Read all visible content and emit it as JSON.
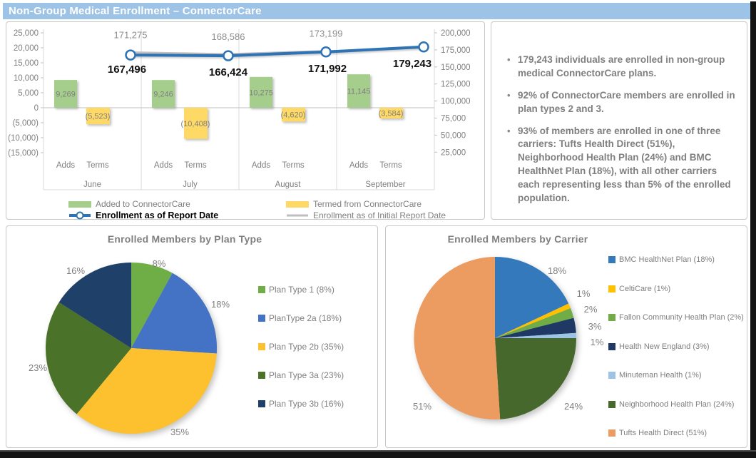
{
  "title": "Non-Group Medical Enrollment – ConnectorCare",
  "colors": {
    "titlebar_bg": "#9DC3E6",
    "added_bar": "#A5CE8D",
    "termed_bar": "#FFD965",
    "report_line": "#2E74B5",
    "initial_line": "#BFBFBF",
    "edge_strip": "#141414",
    "panel_border": "#C7C7C7",
    "axis_text": "#7F7F7F"
  },
  "summary": {
    "bullets": [
      "179,243 individuals are enrolled in non-group medical ConnectorCare plans.",
      "92% of ConnectorCare members are enrolled in plan types 2 and 3.",
      "93% of members are enrolled in one of three carriers: Tufts Health Direct (51%), Neighborhood Health Plan (24%) and BMC HealthNet Plan (18%), with all other carriers each representing less than 5% of the enrolled population."
    ]
  },
  "chart_data": [
    {
      "type": "bar",
      "subtype": "combo bar+line, dual axis",
      "categories": [
        "June",
        "July",
        "August",
        "September"
      ],
      "sub_categories": [
        "Adds",
        "Terms"
      ],
      "series": [
        {
          "name": "Added to ConnectorCare",
          "type": "bar",
          "axis": "left",
          "values": [
            9269,
            9246,
            10275,
            11145
          ],
          "labels": [
            "9,269",
            "9,246",
            "10,275",
            "11,145"
          ],
          "color": "#A5CE8D"
        },
        {
          "name": "Termed from ConnectorCare",
          "type": "bar",
          "axis": "left",
          "values": [
            -5523,
            -10408,
            -4620,
            -3584
          ],
          "labels": [
            "(5,523)",
            "(10,408)",
            "(4,620)",
            "(3,584)"
          ],
          "color": "#FFD965"
        },
        {
          "name": "Enrollment as of Report Date",
          "type": "line",
          "axis": "right",
          "values": [
            167496,
            166424,
            171992,
            179243
          ],
          "labels": [
            "167,496",
            "166,424",
            "171,992",
            "179,243"
          ],
          "color": "#2E74B5"
        },
        {
          "name": "Enrollment as of Initial Report Date",
          "type": "line",
          "axis": "right",
          "values": [
            171275,
            168586,
            173199,
            null
          ],
          "labels": [
            "171,275",
            "168,586",
            "173,199",
            ""
          ],
          "color": "#BFBFBF"
        }
      ],
      "left_axis": {
        "max": 25000,
        "min": -15000,
        "step": 5000,
        "labels": [
          "25,000",
          "20,000",
          "15,000",
          "10,000",
          "5,000",
          "0",
          "(5,000)",
          "(10,000)",
          "(15,000)"
        ]
      },
      "right_axis": {
        "max": 200000,
        "min_labeled": 25000,
        "step": 25000,
        "labels": [
          "200,000",
          "175,000",
          "150,000",
          "125,000",
          "100,000",
          "75,000",
          "50,000",
          "25,000"
        ]
      },
      "grid": "vertical category separators + zero line",
      "legend_position": "bottom"
    },
    {
      "type": "pie",
      "title": "Enrolled Members by Plan Type",
      "legend_position": "right",
      "slices": [
        {
          "label": "Plan Type 1 (8%)",
          "pct": 8,
          "pct_label": "8%",
          "color": "#6FAE46"
        },
        {
          "label": "PlanType 2a (18%)",
          "pct": 18,
          "pct_label": "18%",
          "color": "#4472C4"
        },
        {
          "label": "Plan Type 2b (35%)",
          "pct": 35,
          "pct_label": "35%",
          "color": "#FDC02F"
        },
        {
          "label": "Plan Type 3a (23%)",
          "pct": 23,
          "pct_label": "23%",
          "color": "#4A7229"
        },
        {
          "label": "Plan Type 3b (16%)",
          "pct": 16,
          "pct_label": "16%",
          "color": "#1F4068"
        }
      ]
    },
    {
      "type": "pie",
      "title": "Enrolled Members by Carrier",
      "legend_position": "right",
      "slices": [
        {
          "label": "BMC HealthNet Plan (18%)",
          "pct": 18,
          "pct_label": "18%",
          "color": "#3579BD"
        },
        {
          "label": "CeltiCare (1%)",
          "pct": 1,
          "pct_label": "1%",
          "color": "#FFC000"
        },
        {
          "label": "Fallon Community Health Plan (2%)",
          "pct": 2,
          "pct_label": "2%",
          "color": "#70AD47"
        },
        {
          "label": "Health New England (3%)",
          "pct": 3,
          "pct_label": "3%",
          "color": "#1F3864"
        },
        {
          "label": "Minuteman Health (1%)",
          "pct": 1,
          "pct_label": "1%",
          "color": "#9DC3E6"
        },
        {
          "label": "Neighborhood Health Plan (24%)",
          "pct": 24,
          "pct_label": "24%",
          "color": "#47682C"
        },
        {
          "label": "Tufts Health Direct (51%)",
          "pct": 51,
          "pct_label": "51%",
          "color": "#EC9C60"
        }
      ]
    }
  ]
}
